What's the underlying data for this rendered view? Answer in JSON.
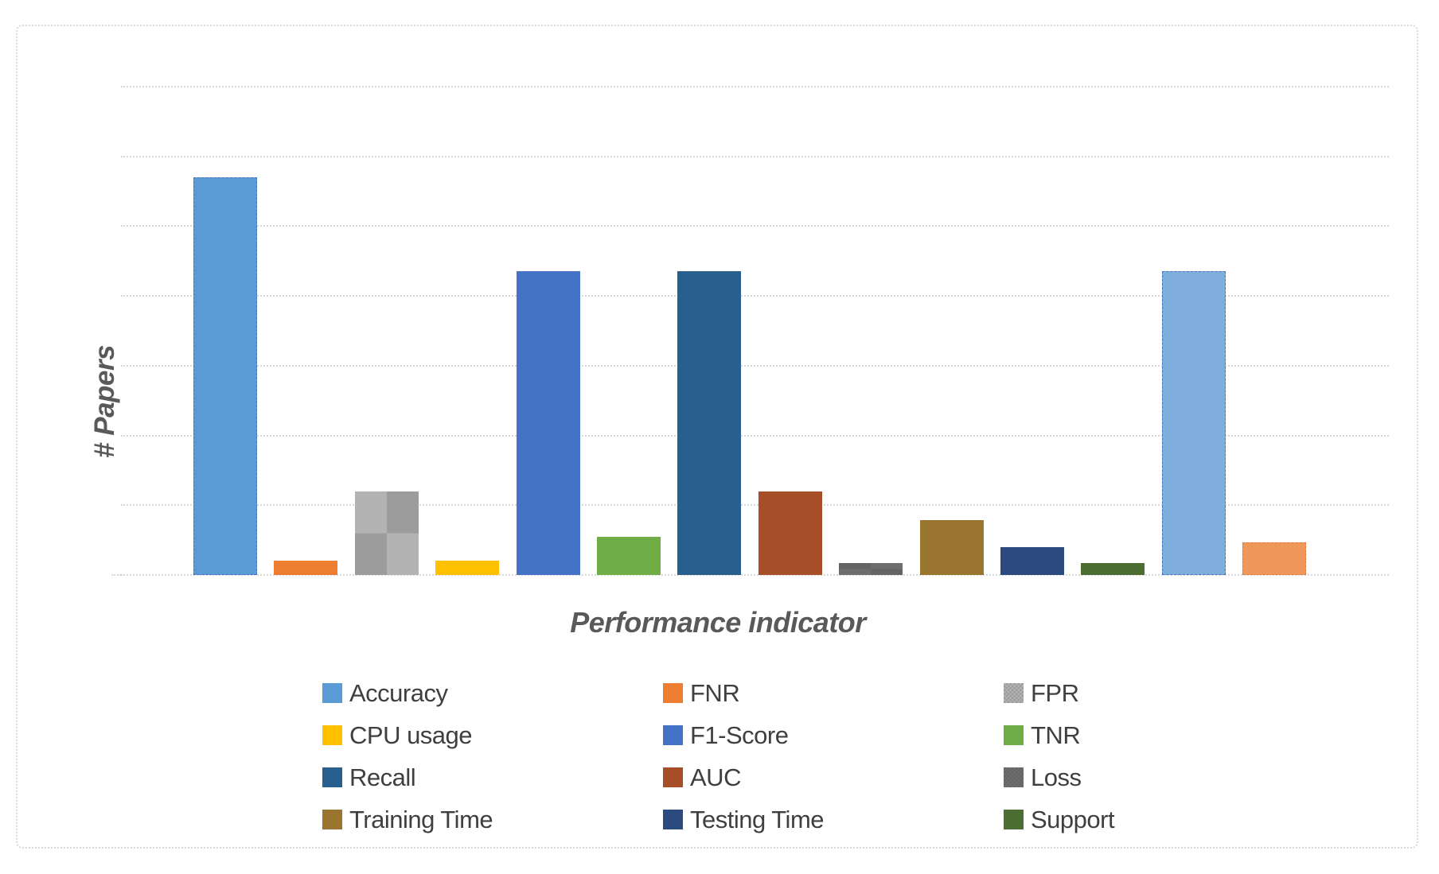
{
  "figure": {
    "background": "#FFFFFF",
    "border_color": "#D9D9D9"
  },
  "chart_data": {
    "type": "bar",
    "title": "",
    "xlabel": "Performance indicator",
    "ylabel": "# Papers",
    "axis_title_color": "#595959",
    "gridline_color": "#D9D9D9",
    "grid_on": true,
    "y_axis": {
      "tick_labels_visible": false,
      "ylim": [
        0,
        7.3
      ],
      "gridline_interval": 1,
      "note": "axis has no numeric tick labels; bar values estimated in gridline units"
    },
    "categories": [
      "Accuracy",
      "FNR",
      "FPR",
      "CPU usage",
      "F1-Score",
      "TNR",
      "Recall",
      "AUC",
      "Loss",
      "Training Time",
      "Testing Time",
      "Support",
      "",
      ""
    ],
    "values": [
      5.7,
      0.2,
      1.2,
      0.2,
      4.35,
      0.55,
      4.35,
      1.2,
      0.17,
      0.79,
      0.4,
      0.17,
      4.35,
      0.47
    ],
    "bars": [
      {
        "label": "Accuracy",
        "value": 5.7,
        "color": "#5B9BD5",
        "pattern": null,
        "edge_color": "#4472C4"
      },
      {
        "label": "FNR",
        "value": 0.2,
        "color": "#ED7D31",
        "pattern": null,
        "edge_color": null
      },
      {
        "label": "FPR",
        "value": 1.2,
        "color": "#B3B3B3",
        "pattern": "checker",
        "pattern_color": "#9C9C9C",
        "edge_color": null
      },
      {
        "label": "CPU usage",
        "value": 0.2,
        "color": "#FFC000",
        "pattern": null,
        "edge_color": null
      },
      {
        "label": "F1-Score",
        "value": 4.35,
        "color": "#4472C4",
        "pattern": null,
        "edge_color": null
      },
      {
        "label": "TNR",
        "value": 0.55,
        "color": "#70AD47",
        "pattern": null,
        "edge_color": null
      },
      {
        "label": "Recall",
        "value": 4.35,
        "color": "#275F8F",
        "pattern": null,
        "edge_color": null
      },
      {
        "label": "AUC",
        "value": 1.2,
        "color": "#A64E28",
        "pattern": null,
        "edge_color": null
      },
      {
        "label": "Loss",
        "value": 0.17,
        "color": "#646464",
        "pattern": "checker",
        "pattern_color": "#6E6E6E",
        "edge_color": null
      },
      {
        "label": "Training Time",
        "value": 0.79,
        "color": "#997530",
        "pattern": null,
        "edge_color": null
      },
      {
        "label": "Testing Time",
        "value": 0.4,
        "color": "#2A4A80",
        "pattern": null,
        "edge_color": null
      },
      {
        "label": "Support",
        "value": 0.17,
        "color": "#4D6E33",
        "pattern": null,
        "edge_color": null
      },
      {
        "label": "",
        "value": 4.35,
        "color": "#7FAEDC",
        "pattern": null,
        "edge_color": "#4472C4"
      },
      {
        "label": "",
        "value": 0.47,
        "color": "#F0975C",
        "pattern": null,
        "edge_color": "#E07B39"
      }
    ],
    "legend": {
      "position": "bottom",
      "columns": 3,
      "text_color": "#3F3F3F",
      "entries": [
        {
          "label": "Accuracy",
          "color": "#5B9BD5",
          "pattern": null
        },
        {
          "label": "FNR",
          "color": "#ED7D31",
          "pattern": null
        },
        {
          "label": "FPR",
          "color": "#B3B3B3",
          "pattern": "checker",
          "pattern_color": "#9C9C9C"
        },
        {
          "label": "CPU usage",
          "color": "#FFC000",
          "pattern": null
        },
        {
          "label": "F1-Score",
          "color": "#4472C4",
          "pattern": null
        },
        {
          "label": "TNR",
          "color": "#70AD47",
          "pattern": null
        },
        {
          "label": "Recall",
          "color": "#275F8F",
          "pattern": null
        },
        {
          "label": "AUC",
          "color": "#A64E28",
          "pattern": null
        },
        {
          "label": "Loss",
          "color": "#646464",
          "pattern": "checker",
          "pattern_color": "#6E6E6E"
        },
        {
          "label": "Training Time",
          "color": "#997530",
          "pattern": null
        },
        {
          "label": "Testing Time",
          "color": "#2A4A80",
          "pattern": null
        },
        {
          "label": "Support",
          "color": "#4D6E33",
          "pattern": null
        }
      ]
    }
  }
}
